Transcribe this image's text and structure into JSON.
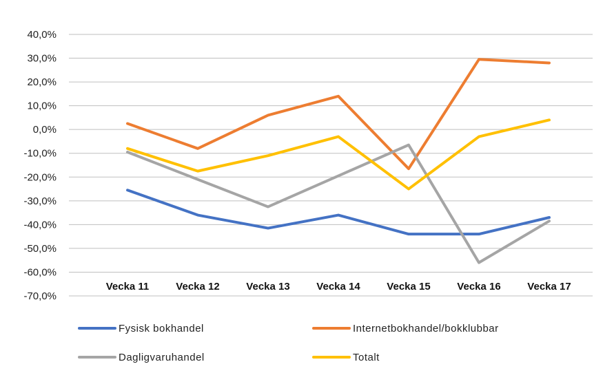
{
  "chart_data": {
    "type": "line",
    "categories": [
      "Vecka 11",
      "Vecka 12",
      "Vecka 13",
      "Vecka 14",
      "Vecka 15",
      "Vecka 16",
      "Vecka 17"
    ],
    "ylim": [
      -70,
      40
    ],
    "ytick_step": 10,
    "ytick_labels": [
      "40,0%",
      "30,0%",
      "20,0%",
      "10,0%",
      "0,0%",
      "-10,0%",
      "-20,0%",
      "-30,0%",
      "-40,0%",
      "-50,0%",
      "-60,0%",
      "-70,0%"
    ],
    "grid": true,
    "legend_position": "bottom",
    "series": [
      {
        "name": "Fysisk bokhandel",
        "color": "#4472C4",
        "values": [
          -25.5,
          -36.0,
          -41.5,
          -36.0,
          -44.0,
          -44.0,
          -37.0
        ]
      },
      {
        "name": "Internetbokhandel/bokklubbar",
        "color": "#ED7D31",
        "values": [
          2.5,
          -8.0,
          6.0,
          14.0,
          -16.5,
          29.5,
          28.0
        ]
      },
      {
        "name": "Dagligvaruhandel",
        "color": "#A5A5A5",
        "values": [
          -9.5,
          -21.0,
          -32.5,
          -19.5,
          -6.5,
          -56.0,
          -38.5
        ]
      },
      {
        "name": "Totalt",
        "color": "#FFC000",
        "values": [
          -8.0,
          -17.5,
          -11.0,
          -3.0,
          -25.0,
          -3.0,
          4.0
        ]
      }
    ]
  }
}
